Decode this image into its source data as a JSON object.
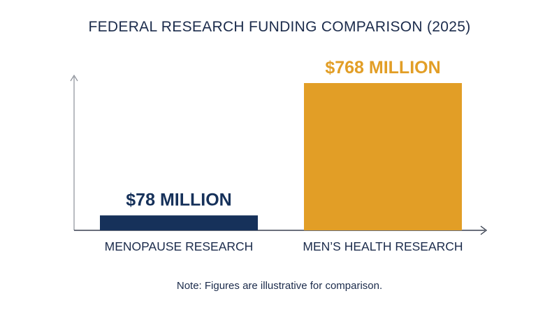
{
  "colors": {
    "navy": "#16315a",
    "gold": "#e29e26",
    "text": "#1b2b4b",
    "axis": "#8a8f98",
    "axis_dark": "#3a4150"
  },
  "note": "Note: Figures are illustrative for comparison.",
  "chart_data": {
    "type": "bar",
    "title": "FEDERAL RESEARCH FUNDING COMPARISON (2025)",
    "categories": [
      "MENOPAUSE RESEARCH",
      "MEN’S HEALTH RESEARCH"
    ],
    "values": [
      78,
      768
    ],
    "data_labels": [
      "$78 MILLION",
      "$768 MILLION"
    ],
    "bar_colors": [
      "#16315a",
      "#e29e26"
    ],
    "unit": "MILLION",
    "xlabel": "",
    "ylabel": "",
    "ylim": [
      0,
      768
    ],
    "grid": false,
    "legend": "none"
  }
}
